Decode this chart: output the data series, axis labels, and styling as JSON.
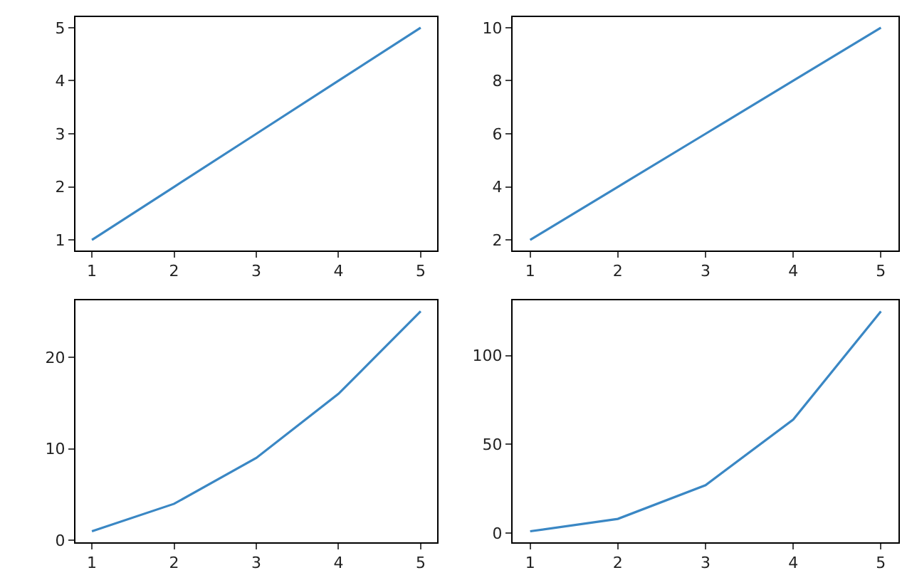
{
  "chart_data": [
    {
      "type": "line",
      "x": [
        1,
        2,
        3,
        4,
        5
      ],
      "series": [
        {
          "color": "#3a87c4",
          "values": [
            1,
            2,
            3,
            4,
            5
          ]
        }
      ],
      "xlim": [
        0.8,
        5.2
      ],
      "ylim": [
        0.8,
        5.2
      ],
      "xticks": [
        1,
        2,
        3,
        4,
        5
      ],
      "yticks": [
        1,
        2,
        3,
        4,
        5
      ],
      "grid": false
    },
    {
      "type": "line",
      "x": [
        1,
        2,
        3,
        4,
        5
      ],
      "series": [
        {
          "color": "#3a87c4",
          "values": [
            2,
            4,
            6,
            8,
            10
          ]
        }
      ],
      "xlim": [
        0.8,
        5.2
      ],
      "ylim": [
        1.6,
        10.4
      ],
      "xticks": [
        1,
        2,
        3,
        4,
        5
      ],
      "yticks": [
        2,
        4,
        6,
        8,
        10
      ],
      "grid": false
    },
    {
      "type": "line",
      "x": [
        1,
        2,
        3,
        4,
        5
      ],
      "series": [
        {
          "color": "#3a87c4",
          "values": [
            1,
            4,
            9,
            16,
            25
          ]
        }
      ],
      "xlim": [
        0.8,
        5.2
      ],
      "ylim": [
        -0.2,
        26.2
      ],
      "xticks": [
        1,
        2,
        3,
        4,
        5
      ],
      "yticks": [
        0,
        10,
        20
      ],
      "grid": false
    },
    {
      "type": "line",
      "x": [
        1,
        2,
        3,
        4,
        5
      ],
      "series": [
        {
          "color": "#3a87c4",
          "values": [
            1,
            8,
            27,
            64,
            125
          ]
        }
      ],
      "xlim": [
        0.8,
        5.2
      ],
      "ylim": [
        -5.2,
        131.2
      ],
      "xticks": [
        1,
        2,
        3,
        4,
        5
      ],
      "yticks": [
        0,
        50,
        100
      ],
      "grid": false
    }
  ]
}
